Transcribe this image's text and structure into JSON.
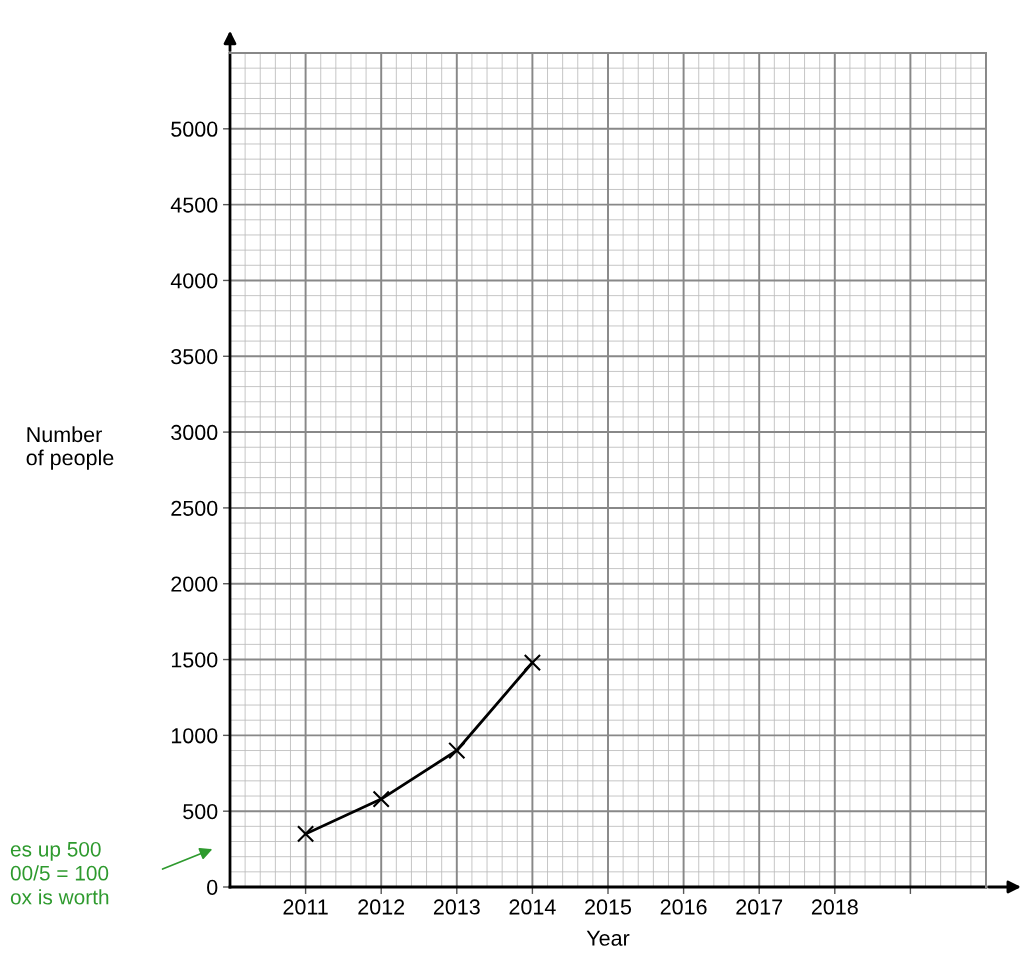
{
  "chart_data": {
    "type": "line",
    "xlabel": "Year",
    "ylabel": "Number\nof people",
    "x": [
      2011,
      2012,
      2013,
      2014
    ],
    "series": [
      {
        "color": "#000000",
        "values": [
          350,
          580,
          900,
          1480
        ]
      }
    ],
    "marker": "cross",
    "line_style": "solid",
    "grid": true,
    "xlim": [
      2010,
      2020
    ],
    "xticks": [
      2011,
      2012,
      2013,
      2014,
      2015,
      2016,
      2017,
      2018,
      {
        "value": 2019,
        "label": null
      }
    ],
    "ylim": [
      0,
      5500
    ],
    "yticks": [
      0,
      500,
      1000,
      1500,
      2000,
      2500,
      3000,
      3500,
      4000,
      4500,
      5000
    ],
    "annotations": [
      "es up 500\n00/5 = 100\nox is worth"
    ]
  }
}
